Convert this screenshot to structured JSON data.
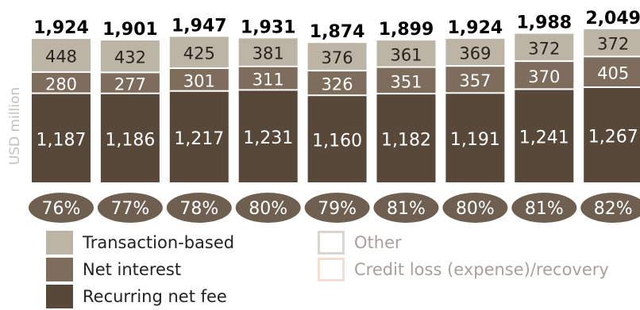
{
  "chart_data": {
    "type": "bar",
    "stacked": true,
    "ylabel": "USD million",
    "categories": [
      "",
      "",
      "",
      "",
      "",
      "",
      "",
      "",
      ""
    ],
    "totals": [
      "1,924",
      "1,901",
      "1,947",
      "1,931",
      "1,874",
      "1,899",
      "1,924",
      "1,988",
      "2,049"
    ],
    "total_values": [
      1924,
      1901,
      1947,
      1931,
      1874,
      1899,
      1924,
      1988,
      2049
    ],
    "series": [
      {
        "name": "Recurring net fee",
        "color": "#574839",
        "values": [
          1187,
          1186,
          1217,
          1231,
          1160,
          1182,
          1191,
          1241,
          1267
        ],
        "labels": [
          "1,187",
          "1,186",
          "1,217",
          "1,231",
          "1,160",
          "1,182",
          "1,191",
          "1,241",
          "1,267"
        ]
      },
      {
        "name": "Net interest",
        "color": "#7e6d5c",
        "values": [
          280,
          277,
          301,
          311,
          326,
          351,
          357,
          370,
          405
        ],
        "labels": [
          "280",
          "277",
          "301",
          "311",
          "326",
          "351",
          "357",
          "370",
          "405"
        ]
      },
      {
        "name": "Transaction-based",
        "color": "#bcb4a5",
        "values": [
          448,
          432,
          425,
          381,
          376,
          361,
          369,
          372,
          372
        ],
        "labels": [
          "448",
          "432",
          "425",
          "381",
          "376",
          "361",
          "369",
          "372",
          "372"
        ]
      }
    ],
    "ratios": [
      "76%",
      "77%",
      "78%",
      "80%",
      "79%",
      "81%",
      "80%",
      "81%",
      "82%"
    ],
    "ratio_color": "#6e5f51",
    "legend_position": "bottom",
    "grid": false
  },
  "legend": {
    "items": [
      {
        "label": "Transaction-based",
        "color": "#bcb4a5",
        "style": "filled"
      },
      {
        "label": "Net interest",
        "color": "#7e6d5c",
        "style": "filled"
      },
      {
        "label": "Recurring net fee",
        "color": "#574839",
        "style": "filled"
      },
      {
        "label": "Other",
        "color": "#d9d5cf",
        "style": "outline"
      },
      {
        "label": "Credit loss (expense)/recovery",
        "color": "#f4ddd3",
        "style": "outline"
      }
    ]
  }
}
